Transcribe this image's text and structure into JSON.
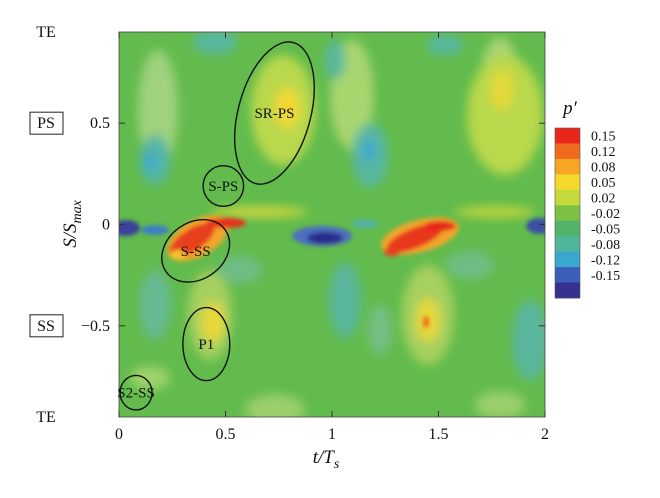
{
  "chart_data": {
    "type": "heatmap",
    "xlabel": "t/T",
    "xlabel_sub": "s",
    "ylabel": "S/S",
    "ylabel_sub": "max",
    "xlim": [
      0,
      2
    ],
    "ylim": [
      -0.95,
      0.95
    ],
    "x_ticks": [
      {
        "v": 0,
        "label": "0"
      },
      {
        "v": 0.5,
        "label": "0.5"
      },
      {
        "v": 1,
        "label": "1"
      },
      {
        "v": 1.5,
        "label": "1.5"
      },
      {
        "v": 2,
        "label": "2"
      }
    ],
    "y_ticks": [
      {
        "v": 0.5,
        "label": "0.5"
      },
      {
        "v": 0,
        "label": "0"
      },
      {
        "v": -0.5,
        "label": "−0.5"
      }
    ],
    "side_labels": [
      {
        "v": 0.95,
        "text": "TE",
        "boxed": false
      },
      {
        "v": 0.5,
        "text": "PS",
        "boxed": true
      },
      {
        "v": -0.5,
        "text": "SS",
        "boxed": true
      },
      {
        "v": -0.95,
        "text": "TE",
        "boxed": false
      }
    ],
    "colorbar": {
      "title": "p′",
      "levels": [
        "0.15",
        "0.12",
        "0.08",
        "0.05",
        "0.02",
        "-0.02",
        "-0.05",
        "-0.08",
        "-0.12",
        "-0.15"
      ],
      "colors": [
        "#e8261b",
        "#f06a1e",
        "#f6a623",
        "#f5d92b",
        "#c6d93a",
        "#7cc143",
        "#52b36a",
        "#4fb59d",
        "#3aa7cf",
        "#3b5fb8",
        "#36318e"
      ]
    },
    "annotations": [
      {
        "label": "SR-PS",
        "cx": 0.73,
        "cy": 0.55,
        "rx": 0.17,
        "ry": 0.36,
        "rot": 15
      },
      {
        "label": "S-PS",
        "cx": 0.49,
        "cy": 0.19,
        "rx": 0.095,
        "ry": 0.1,
        "rot": 0
      },
      {
        "label": "S-SS",
        "cx": 0.36,
        "cy": -0.13,
        "rx": 0.17,
        "ry": 0.14,
        "rot": -35
      },
      {
        "label": "P1",
        "cx": 0.41,
        "cy": -0.59,
        "rx": 0.11,
        "ry": 0.18,
        "rot": 0
      },
      {
        "label": "S2-SS",
        "cx": 0.08,
        "cy": -0.83,
        "rx": 0.075,
        "ry": 0.085,
        "rot": 0
      }
    ]
  }
}
